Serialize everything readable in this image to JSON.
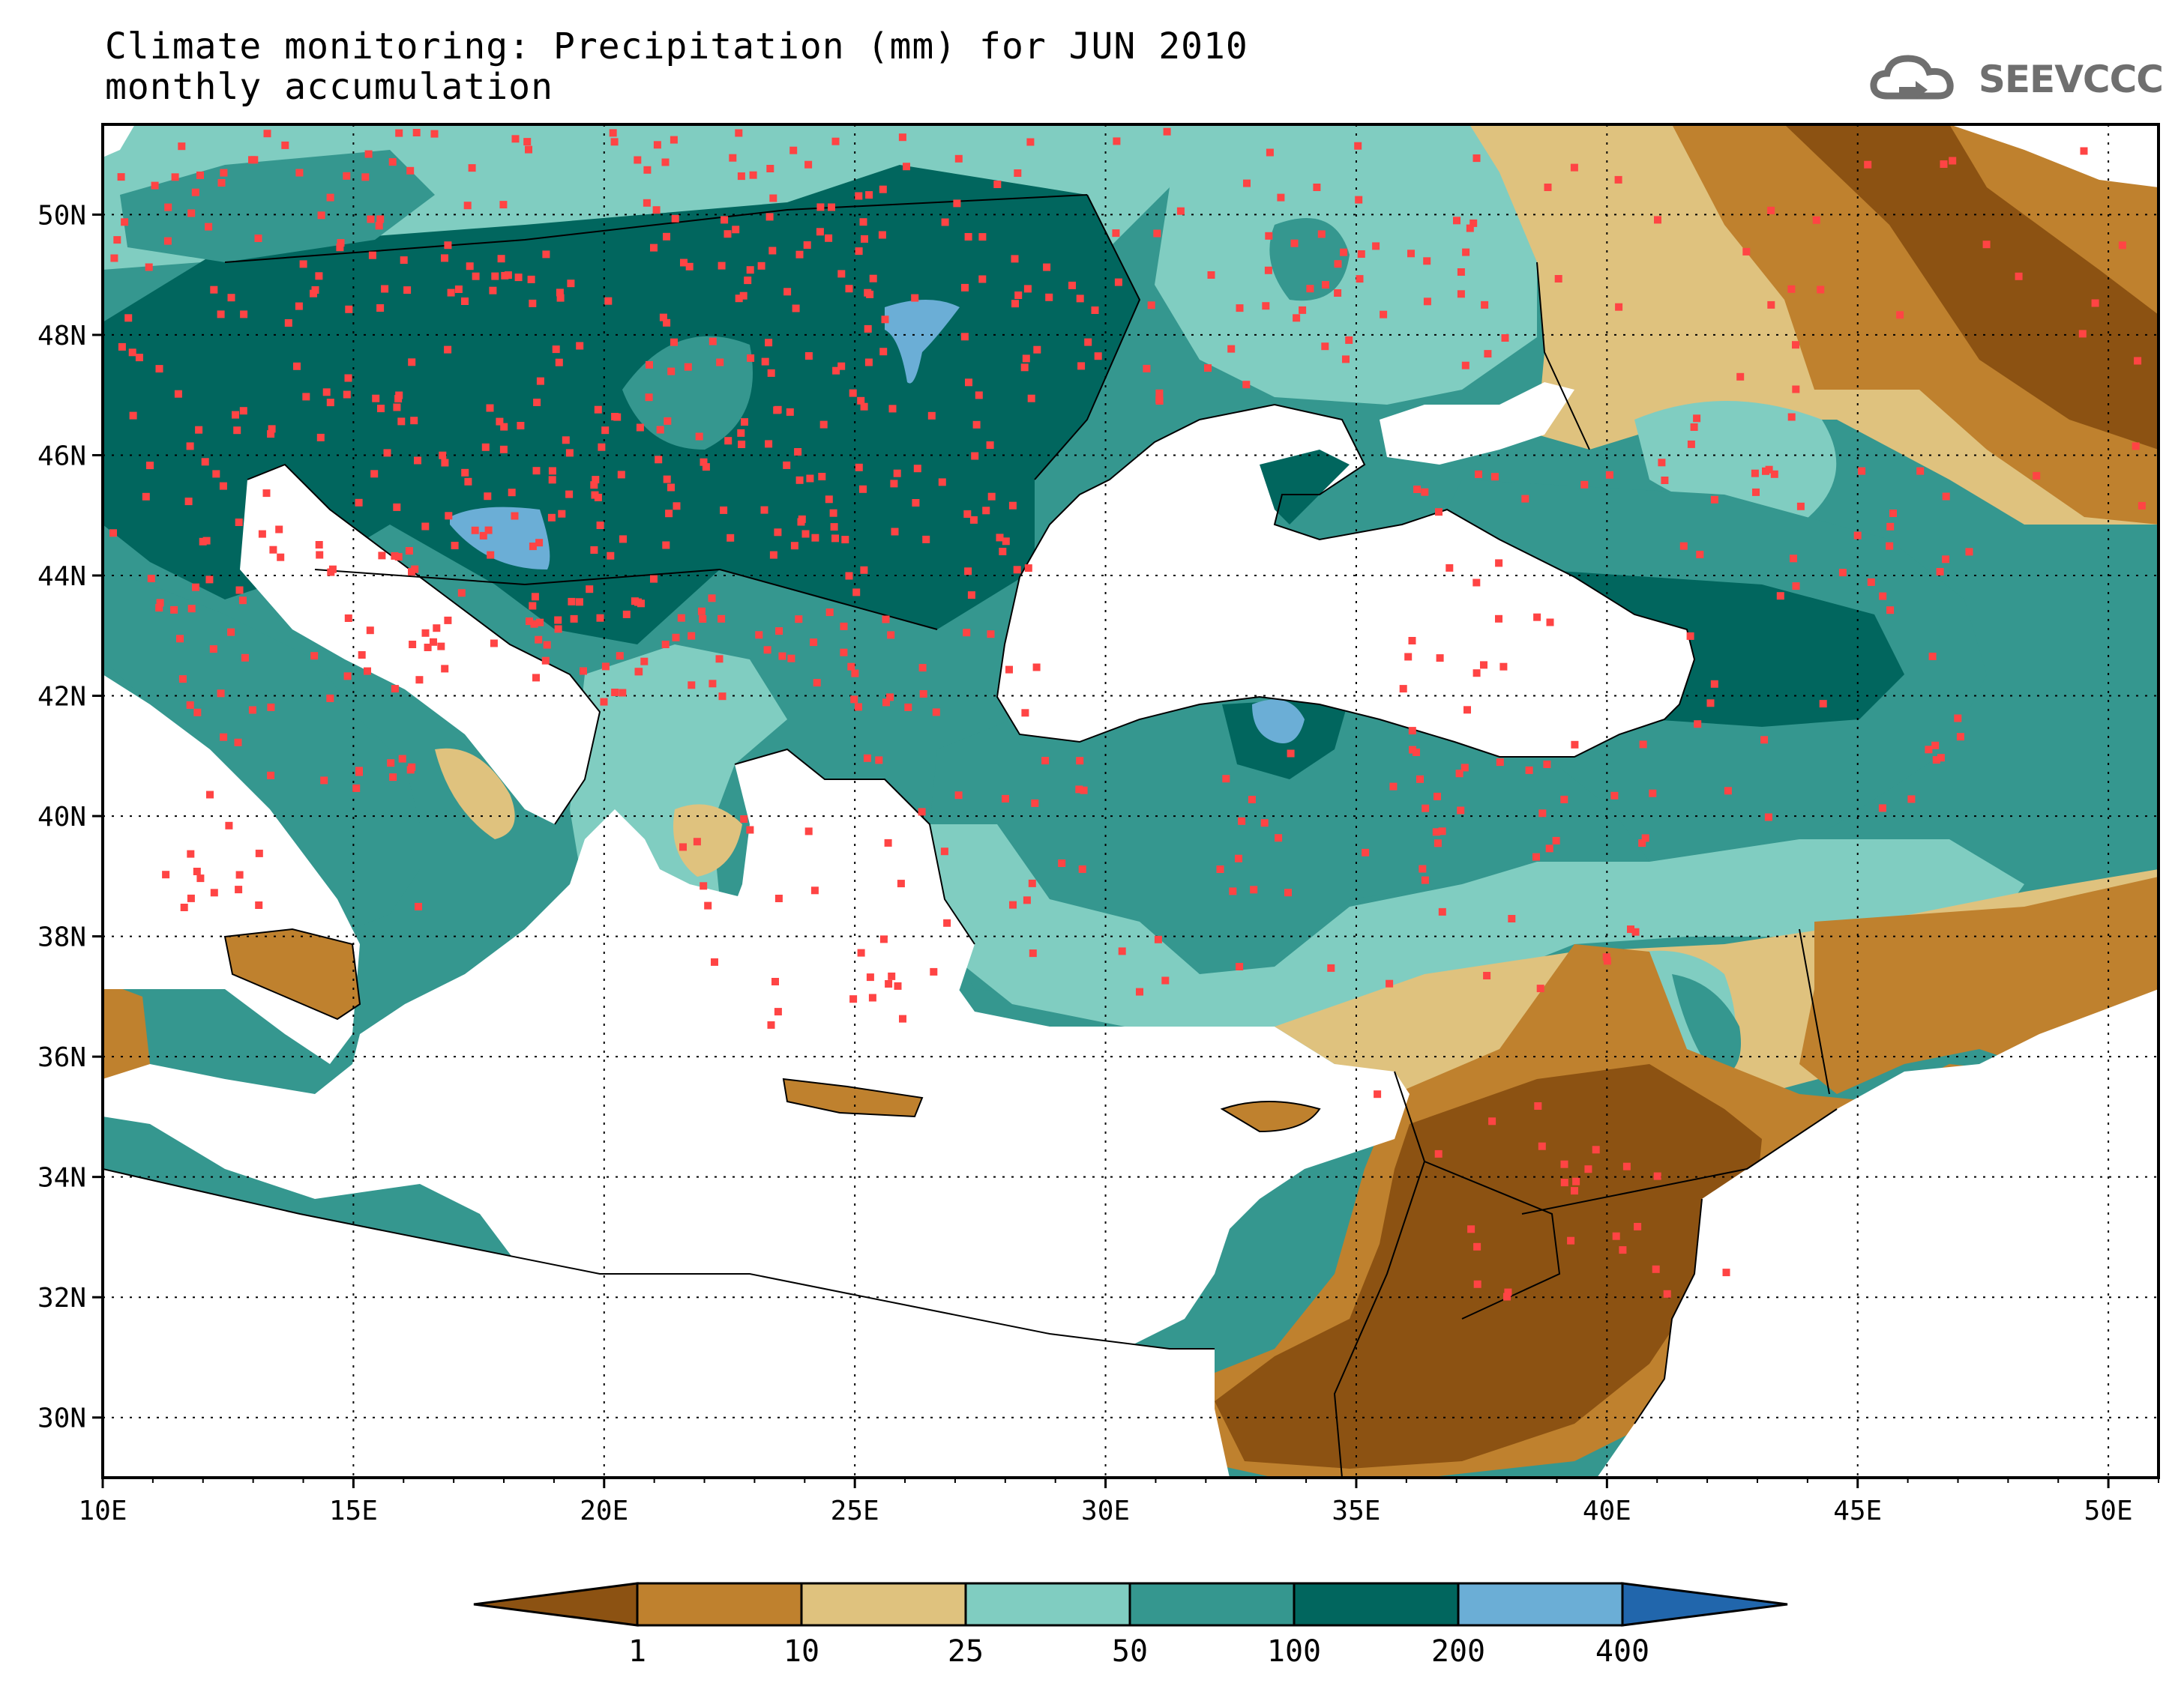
{
  "title": {
    "line1": "Climate monitoring: Precipitation (mm) for JUN 2010",
    "line2": "monthly accumulation"
  },
  "logo": {
    "text": "SEEVCCC",
    "icon": "cloud-icon"
  },
  "map": {
    "lon_range": [
      10,
      51
    ],
    "lat_range": [
      29,
      51.5
    ],
    "lon_ticks": [
      {
        "value": 10,
        "label": "10E"
      },
      {
        "value": 15,
        "label": "15E"
      },
      {
        "value": 20,
        "label": "20E"
      },
      {
        "value": 25,
        "label": "25E"
      },
      {
        "value": 30,
        "label": "30E"
      },
      {
        "value": 35,
        "label": "35E"
      },
      {
        "value": 40,
        "label": "40E"
      },
      {
        "value": 45,
        "label": "45E"
      },
      {
        "value": 50,
        "label": "50E"
      }
    ],
    "lat_ticks": [
      {
        "value": 30,
        "label": "30N"
      },
      {
        "value": 32,
        "label": "32N"
      },
      {
        "value": 34,
        "label": "34N"
      },
      {
        "value": 36,
        "label": "36N"
      },
      {
        "value": 38,
        "label": "38N"
      },
      {
        "value": 40,
        "label": "40N"
      },
      {
        "value": 42,
        "label": "42N"
      },
      {
        "value": 44,
        "label": "44N"
      },
      {
        "value": 46,
        "label": "46N"
      },
      {
        "value": 48,
        "label": "48N"
      },
      {
        "value": 50,
        "label": "50N"
      }
    ],
    "gridlines": "dotted",
    "station_color": "#ff4444"
  },
  "legend": {
    "levels": [
      "1",
      "10",
      "25",
      "50",
      "100",
      "200",
      "400"
    ],
    "colors": [
      "#8c5212",
      "#bf812e",
      "#dfc27e",
      "#80cdc1",
      "#35978f",
      "#01665e",
      "#6baed6",
      "#2166ac"
    ]
  }
}
